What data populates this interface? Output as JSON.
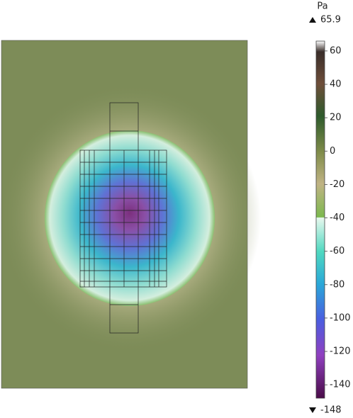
{
  "chart_data": {
    "type": "surface",
    "unit": "Pa",
    "max": 65.9,
    "min": -148,
    "colorbar_ticks": [
      60,
      40,
      20,
      0,
      -20,
      -40,
      -60,
      -80,
      -100,
      -120,
      -140
    ]
  }
}
